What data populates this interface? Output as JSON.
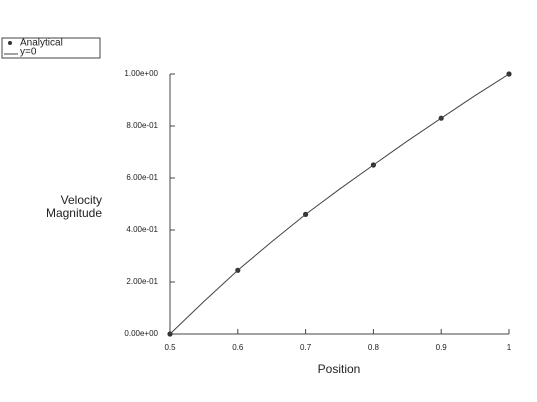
{
  "chart_data": {
    "type": "xy",
    "xlabel": "Position",
    "ylabel": "Velocity Magnitude",
    "series": [
      {
        "name": "Analytical",
        "kind": "scatter",
        "color": "#333333",
        "x": [
          0.5,
          0.6,
          0.7,
          0.8,
          0.9,
          1
        ],
        "values": [
          0,
          0.245,
          0.46,
          0.65,
          0.83,
          1.0
        ]
      },
      {
        "name": "y=0",
        "kind": "line",
        "color": "#444444",
        "x": [
          0.5,
          0.55,
          0.6,
          0.65,
          0.7,
          0.75,
          0.8,
          0.85,
          0.9,
          0.95,
          1
        ],
        "values": [
          0,
          0.125,
          0.245,
          0.355,
          0.46,
          0.557,
          0.65,
          0.742,
          0.83,
          0.917,
          1.0
        ]
      }
    ],
    "xlim": [
      0.5,
      1
    ],
    "xticks": [
      0.5,
      0.6,
      0.7,
      0.8,
      0.9,
      1
    ],
    "ylim": [
      0,
      1
    ],
    "yticks": [
      {
        "value": 0,
        "label": "0.00e+00"
      },
      {
        "value": 0.2,
        "label": "2.00e-01"
      },
      {
        "value": 0.4,
        "label": "4.00e-01"
      },
      {
        "value": 0.6,
        "label": "6.00e-01"
      },
      {
        "value": 0.8,
        "label": "8.00e-01"
      },
      {
        "value": 1,
        "label": "1.00e+00"
      }
    ],
    "legend": "top-left"
  }
}
